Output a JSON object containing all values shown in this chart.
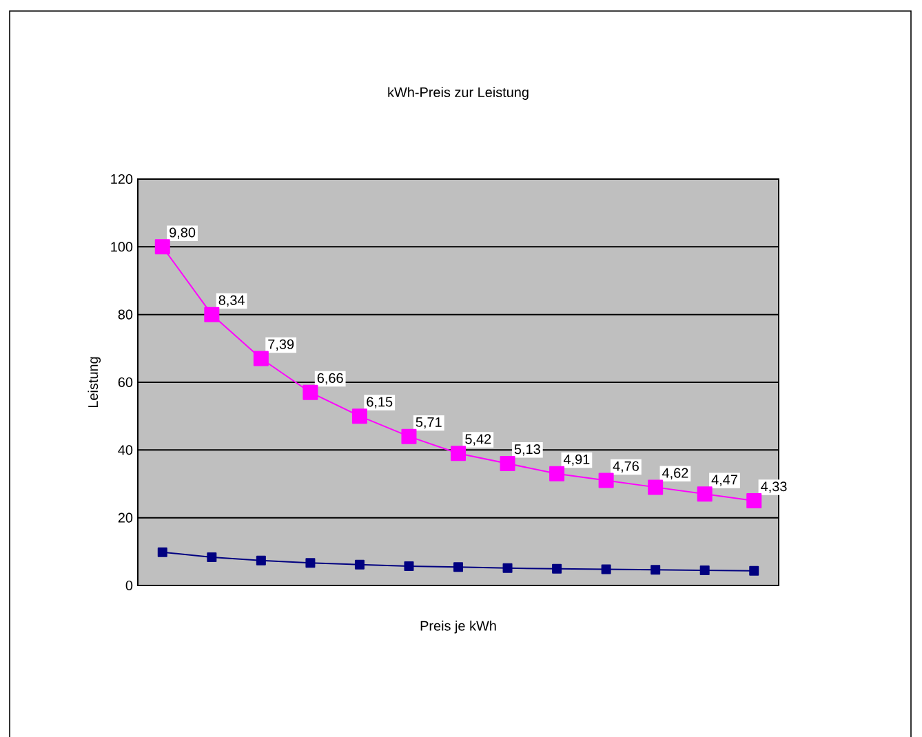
{
  "chart_data": {
    "type": "line",
    "title": "kWh-Preis zur Leistung",
    "xlabel": "Preis je kWh",
    "ylabel": "Leistung",
    "categories": [
      null,
      null,
      null,
      null,
      null,
      null,
      null,
      null,
      null,
      null,
      null,
      null,
      null
    ],
    "series": [
      {
        "color": "#000080",
        "values": [
          9.8,
          8.34,
          7.39,
          6.66,
          6.15,
          5.71,
          5.42,
          5.13,
          4.91,
          4.76,
          4.62,
          4.47,
          4.33
        ]
      },
      {
        "color": "#ff00ff",
        "values": [
          100,
          80,
          67,
          57,
          50,
          44,
          39,
          36,
          33,
          31,
          29,
          27,
          25
        ]
      }
    ],
    "annotations": [
      "9,80",
      "8,34",
      "7,39",
      "6,66",
      "6,15",
      "5,71",
      "5,42",
      "5,13",
      "4,91",
      "4,76",
      "4,62",
      "4,47",
      "4,33"
    ],
    "ylim": [
      0,
      120
    ],
    "yticks": [
      0,
      20,
      40,
      60,
      80,
      100,
      120
    ],
    "grid": "y",
    "marker": "square"
  }
}
